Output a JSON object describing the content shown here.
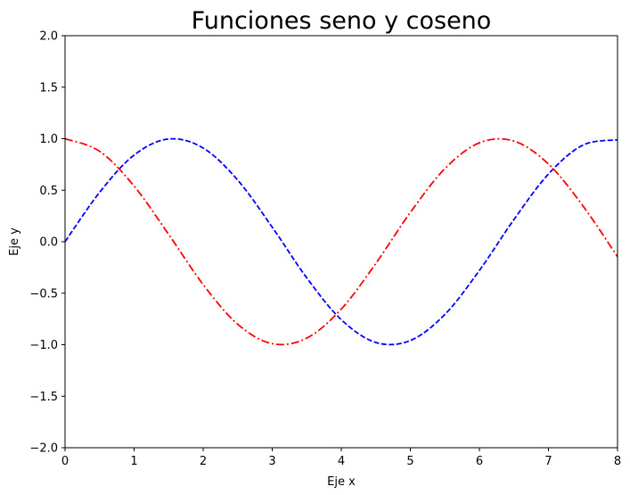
{
  "chart_data": {
    "type": "line",
    "title": "Funciones seno y coseno",
    "xlabel": "Eje x",
    "ylabel": "Eje y",
    "xlim": [
      0,
      8
    ],
    "ylim": [
      -2,
      2
    ],
    "x_ticks": [
      "0",
      "1",
      "2",
      "3",
      "4",
      "5",
      "6",
      "7",
      "8"
    ],
    "y_ticks": [
      "−2.0",
      "−1.5",
      "−1.0",
      "−0.5",
      "0.0",
      "0.5",
      "1.0",
      "1.5",
      "2.0"
    ],
    "grid": false,
    "legend": "none",
    "x": [
      0,
      0.5,
      1,
      1.5,
      2,
      2.5,
      3,
      3.5,
      4,
      4.5,
      5,
      5.5,
      6,
      6.5,
      7,
      7.5,
      8
    ],
    "series": [
      {
        "color": "#0000ff",
        "line_style": "dashed",
        "values": [
          0.0,
          0.479,
          0.841,
          0.997,
          0.909,
          0.598,
          0.141,
          -0.351,
          -0.757,
          -0.978,
          -0.959,
          -0.706,
          -0.279,
          0.215,
          0.657,
          0.938,
          0.989
        ]
      },
      {
        "color": "#ff0000",
        "line_style": "dashdot",
        "values": [
          1.0,
          0.878,
          0.54,
          0.071,
          -0.416,
          -0.801,
          -0.99,
          -0.936,
          -0.654,
          -0.211,
          0.284,
          0.709,
          0.96,
          0.977,
          0.754,
          0.347,
          -0.146
        ]
      }
    ]
  }
}
